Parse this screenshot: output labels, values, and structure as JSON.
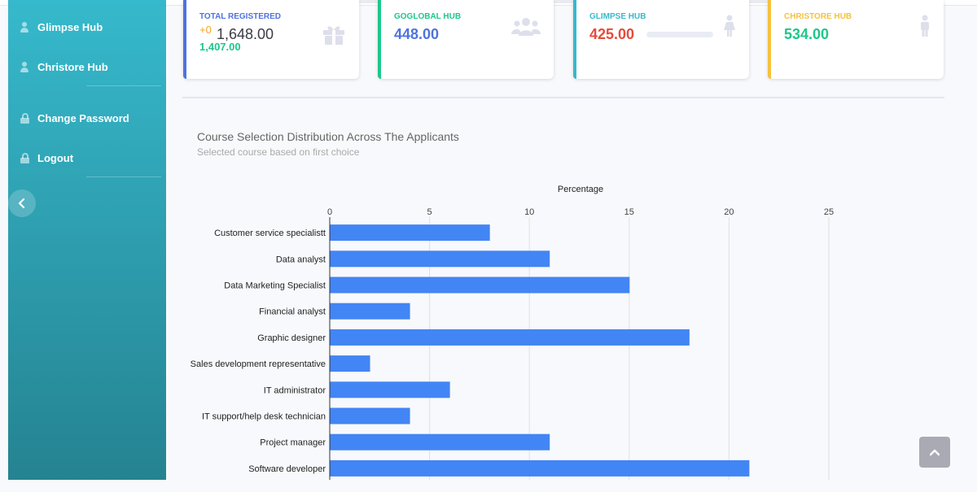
{
  "sidebar": {
    "items": [
      {
        "label": "Glimpse Hub",
        "icon": "user-icon"
      },
      {
        "label": "Christore Hub",
        "icon": "user-icon"
      },
      {
        "label": "Change Password",
        "icon": "lock-icon"
      },
      {
        "label": "Logout",
        "icon": "lock-icon"
      }
    ],
    "toggle_icon": "chevron-left-icon"
  },
  "cards": [
    {
      "label": "TOTAL REGISTERED",
      "delta": "+0",
      "value": "1,648.00",
      "sub_value": "1,407.00",
      "icon": "gift-icon",
      "accent": "#4e73df"
    },
    {
      "label": "GOGLOBAL HUB",
      "value": "448.00",
      "icon": "users-icon",
      "accent": "#1cc88a"
    },
    {
      "label": "GLIMPSE HUB",
      "value": "425.00",
      "icon": "female-icon",
      "accent": "#36b9cc",
      "progress": 0
    },
    {
      "label": "CHRISTORE HUB",
      "value": "534.00",
      "icon": "male-icon",
      "accent": "#f6c23e"
    }
  ],
  "colors": {
    "bar": "#4285f4",
    "value_blue": "#4e73df",
    "value_red": "#e74a3b",
    "value_green": "#1cc88a",
    "delta_orange": "#f6a623"
  },
  "chart": {
    "title": "Course Selection Distribution Across The Applicants",
    "subtitle": "Selected course based on first choice"
  },
  "chart_data": {
    "type": "bar",
    "orientation": "horizontal",
    "title": "Course Selection Distribution Across The Applicants",
    "subtitle": "Selected course based on first choice",
    "xlabel": "Percentage",
    "xlim": [
      0,
      25
    ],
    "xticks": [
      0,
      5,
      10,
      15,
      20,
      25
    ],
    "grid": true,
    "categories": [
      "Customer service specialistt",
      "Data analyst",
      "Data Marketing Specialist",
      "Financial analyst",
      "Graphic designer",
      "Sales development representative",
      "IT administrator",
      "IT support/help desk technician",
      "Project manager",
      "Software developer"
    ],
    "values": [
      8,
      11,
      15,
      4,
      18,
      2,
      6,
      4,
      11,
      21
    ]
  },
  "scroll_top": {
    "icon": "chevron-up-icon"
  }
}
